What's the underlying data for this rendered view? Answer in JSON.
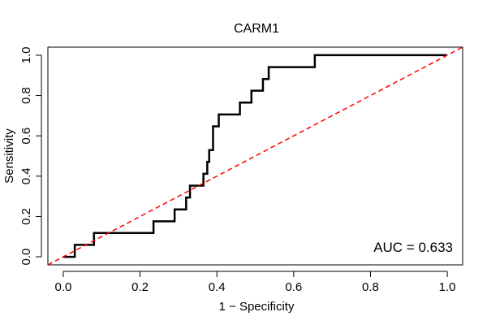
{
  "chart_data": {
    "type": "line",
    "title": "CARM1",
    "xlabel": "1 − Specificity",
    "ylabel": "Sensitivity",
    "xlim": [
      -0.04,
      1.04
    ],
    "ylim": [
      -0.04,
      1.04
    ],
    "xticks": [
      0.0,
      0.2,
      0.4,
      0.6,
      0.8,
      1.0
    ],
    "xtick_labels": [
      "0.0",
      "0.2",
      "0.4",
      "0.6",
      "0.8",
      "1.0"
    ],
    "yticks": [
      0.0,
      0.2,
      0.4,
      0.6,
      0.8,
      1.0
    ],
    "ytick_labels": [
      "0.0",
      "0.2",
      "0.4",
      "0.6",
      "0.8",
      "1.0"
    ],
    "grid": false,
    "series": [
      {
        "color": "#000000",
        "style": "solid",
        "x": [
          0.0,
          0.0,
          0.03,
          0.03,
          0.08,
          0.08,
          0.22,
          0.235,
          0.235,
          0.29,
          0.29,
          0.32,
          0.32,
          0.33,
          0.33,
          0.365,
          0.365,
          0.375,
          0.375,
          0.38,
          0.38,
          0.39,
          0.39,
          0.405,
          0.405,
          0.46,
          0.46,
          0.49,
          0.49,
          0.52,
          0.52,
          0.535,
          0.535,
          0.62,
          0.655,
          0.655,
          0.94,
          1.0
        ],
        "y": [
          0.0,
          0.0,
          0.0,
          0.059,
          0.059,
          0.118,
          0.118,
          0.118,
          0.176,
          0.176,
          0.235,
          0.235,
          0.294,
          0.294,
          0.353,
          0.353,
          0.412,
          0.412,
          0.471,
          0.471,
          0.529,
          0.529,
          0.647,
          0.647,
          0.706,
          0.706,
          0.765,
          0.765,
          0.824,
          0.824,
          0.882,
          0.882,
          0.941,
          0.941,
          0.941,
          1.0,
          1.0,
          1.0
        ]
      },
      {
        "color": "#ff0000",
        "style": "dashed",
        "x": [
          -0.04,
          1.04
        ],
        "y": [
          -0.04,
          1.04
        ]
      }
    ],
    "annotations": [
      {
        "text": "AUC = 0.633",
        "position": "bottom-right"
      }
    ]
  }
}
